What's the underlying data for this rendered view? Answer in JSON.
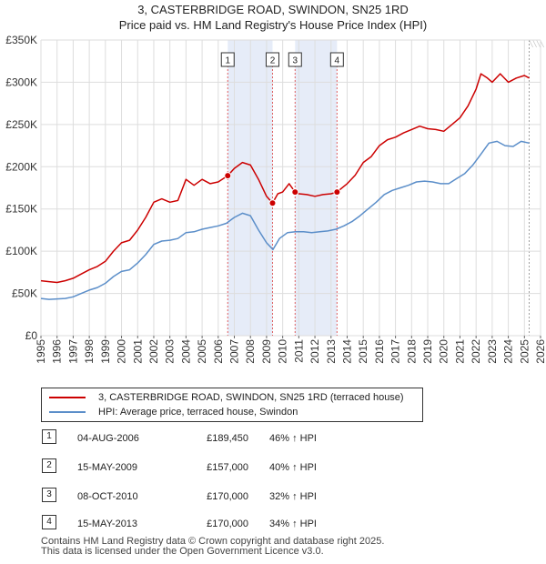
{
  "title": {
    "line1": "3, CASTERBRIDGE ROAD, SWINDON, SN25 1RD",
    "line2": "Price paid vs. HM Land Registry's House Price Index (HPI)"
  },
  "colors": {
    "property": "#cc0000",
    "hpi": "#5b8ec9",
    "shade": "#e6ecf8",
    "vline": "#e06060",
    "grid": "#dddddd"
  },
  "chart_data": {
    "type": "line",
    "title": "Price paid vs. HM Land Registry's House Price Index (HPI)",
    "xlabel": "",
    "ylabel": "",
    "xlim": [
      1995,
      2026
    ],
    "ylim": [
      0,
      350000
    ],
    "y_ticks": [
      {
        "value": 0,
        "label": "£0"
      },
      {
        "value": 50000,
        "label": "£50K"
      },
      {
        "value": 100000,
        "label": "£100K"
      },
      {
        "value": 150000,
        "label": "£150K"
      },
      {
        "value": 200000,
        "label": "£200K"
      },
      {
        "value": 250000,
        "label": "£250K"
      },
      {
        "value": 300000,
        "label": "£300K"
      },
      {
        "value": 350000,
        "label": "£350K"
      }
    ],
    "x_ticks": [
      "1995",
      "1996",
      "1997",
      "1998",
      "1999",
      "2000",
      "2001",
      "2002",
      "2003",
      "2004",
      "2005",
      "2006",
      "2007",
      "2008",
      "2009",
      "2010",
      "2011",
      "2012",
      "2013",
      "2014",
      "2015",
      "2016",
      "2017",
      "2018",
      "2019",
      "2020",
      "2021",
      "2022",
      "2023",
      "2024",
      "2025",
      "2026"
    ],
    "grid": true,
    "shaded_periods": [
      [
        2006.59,
        2009.37
      ],
      [
        2010.77,
        2013.37
      ]
    ],
    "future_from": 2025.3,
    "series": [
      {
        "name": "3, CASTERBRIDGE ROAD, SWINDON, SN25 1RD (terraced house)",
        "color": "#cc0000",
        "x": [
          1995,
          1995.5,
          1996,
          1996.5,
          1997,
          1997.5,
          1998,
          1998.5,
          1999,
          1999.5,
          2000,
          2000.5,
          2001,
          2001.5,
          2002,
          2002.5,
          2003,
          2003.5,
          2004,
          2004.5,
          2005,
          2005.5,
          2006,
          2006.59,
          2007,
          2007.5,
          2008,
          2008.5,
          2009,
          2009.37,
          2009.7,
          2010,
          2010.4,
          2010.77,
          2011,
          2011.5,
          2012,
          2012.5,
          2013,
          2013.37,
          2014,
          2014.5,
          2015,
          2015.5,
          2016,
          2016.5,
          2017,
          2017.5,
          2018,
          2018.5,
          2019,
          2019.5,
          2020,
          2020.5,
          2021,
          2021.5,
          2022,
          2022.3,
          2022.7,
          2023,
          2023.5,
          2024,
          2024.5,
          2025,
          2025.3
        ],
        "values": [
          65000,
          64000,
          63000,
          65000,
          68000,
          73000,
          78000,
          82000,
          88000,
          100000,
          110000,
          113000,
          125000,
          140000,
          158000,
          162000,
          158000,
          160000,
          185000,
          178000,
          185000,
          180000,
          182000,
          189450,
          198000,
          205000,
          202000,
          185000,
          165000,
          157000,
          168000,
          170000,
          180000,
          170000,
          168000,
          167000,
          165000,
          167000,
          168000,
          170000,
          180000,
          190000,
          205000,
          212000,
          225000,
          232000,
          235000,
          240000,
          244000,
          248000,
          245000,
          244000,
          242000,
          250000,
          258000,
          272000,
          292000,
          310000,
          305000,
          300000,
          310000,
          300000,
          305000,
          308000,
          305000
        ]
      },
      {
        "name": "HPI: Average price, terraced house, Swindon",
        "color": "#5b8ec9",
        "x": [
          1995,
          1995.5,
          1996,
          1996.5,
          1997,
          1997.5,
          1998,
          1998.5,
          1999,
          1999.5,
          2000,
          2000.5,
          2001,
          2001.5,
          2002,
          2002.5,
          2003,
          2003.5,
          2004,
          2004.5,
          2005,
          2005.5,
          2006,
          2006.5,
          2007,
          2007.5,
          2008,
          2008.5,
          2009,
          2009.4,
          2009.8,
          2010.3,
          2010.8,
          2011.3,
          2011.8,
          2012.3,
          2012.8,
          2013.3,
          2013.8,
          2014.3,
          2014.8,
          2015.3,
          2015.8,
          2016.3,
          2016.8,
          2017.3,
          2017.8,
          2018.3,
          2018.8,
          2019.3,
          2019.8,
          2020.3,
          2020.8,
          2021.3,
          2021.8,
          2022.3,
          2022.8,
          2023.3,
          2023.8,
          2024.3,
          2024.8,
          2025.3
        ],
        "values": [
          44000,
          43000,
          43500,
          44000,
          46000,
          50000,
          54000,
          57000,
          62000,
          70000,
          76000,
          78000,
          86000,
          96000,
          108000,
          112000,
          113000,
          115000,
          122000,
          123000,
          126000,
          128000,
          130000,
          133000,
          140000,
          145000,
          142000,
          125000,
          110000,
          102000,
          115000,
          122000,
          123000,
          123000,
          122000,
          123000,
          124000,
          126000,
          130000,
          135000,
          142000,
          150000,
          158000,
          167000,
          172000,
          175000,
          178000,
          182000,
          183000,
          182000,
          180000,
          180000,
          186000,
          192000,
          202000,
          215000,
          228000,
          230000,
          225000,
          224000,
          230000,
          228000
        ]
      }
    ],
    "sales": [
      {
        "num": "1",
        "x": 2006.59,
        "value": 189450
      },
      {
        "num": "2",
        "x": 2009.37,
        "value": 157000
      },
      {
        "num": "3",
        "x": 2010.77,
        "value": 170000
      },
      {
        "num": "4",
        "x": 2013.37,
        "value": 170000
      }
    ]
  },
  "legend": {
    "property_label": "3, CASTERBRIDGE ROAD, SWINDON, SN25 1RD (terraced house)",
    "hpi_label": "HPI: Average price, terraced house, Swindon"
  },
  "transactions": [
    {
      "num": "1",
      "date": "04-AUG-2006",
      "price": "£189,450",
      "hpi": "46% ↑ HPI"
    },
    {
      "num": "2",
      "date": "15-MAY-2009",
      "price": "£157,000",
      "hpi": "40% ↑ HPI"
    },
    {
      "num": "3",
      "date": "08-OCT-2010",
      "price": "£170,000",
      "hpi": "32% ↑ HPI"
    },
    {
      "num": "4",
      "date": "15-MAY-2013",
      "price": "£170,000",
      "hpi": "34% ↑ HPI"
    }
  ],
  "footer": {
    "line1": "Contains HM Land Registry data © Crown copyright and database right 2025.",
    "line2": "This data is licensed under the Open Government Licence v3.0."
  }
}
